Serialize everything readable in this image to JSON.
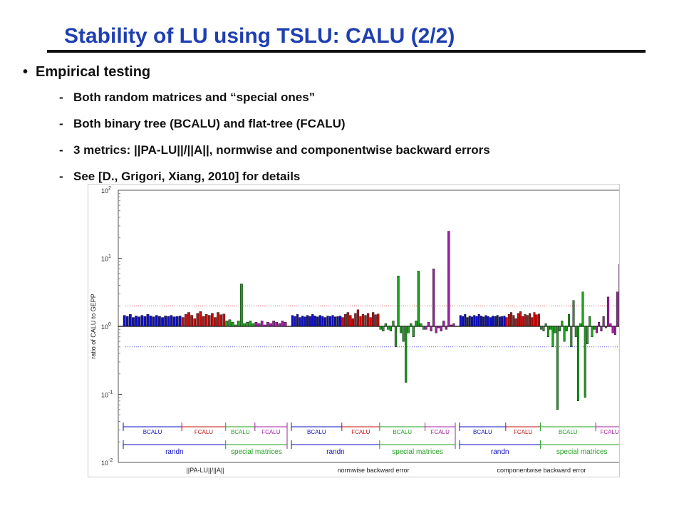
{
  "slide": {
    "title": "Stability of LU using TSLU: CALU  (2/2)",
    "bullet": "Empirical testing",
    "bullet_glyph": "•",
    "dash_glyph": "-",
    "subitems": [
      "Both random matrices and “special ones”",
      "Both binary tree (BCALU) and flat-tree (FCALU)",
      "3 metrics: ||PA-LU||/||A||, normwise and componentwise backward errors",
      "See [D., Grigori, Xiang, 2010] for details"
    ]
  },
  "chart_data": {
    "type": "bar",
    "ylabel": "ratio of CALU to GEPP",
    "yscale": "log",
    "ylim": [
      0.01,
      100
    ],
    "yticks": [
      {
        "base": "10",
        "exp": "2"
      },
      {
        "base": "10",
        "exp": "1"
      },
      {
        "base": "10",
        "exp": "0"
      },
      {
        "base": "10",
        "exp": "-1"
      },
      {
        "base": "10",
        "exp": "-2"
      }
    ],
    "reference_lines": [
      2,
      0.5
    ],
    "colors": {
      "BCALU": "#1010c0",
      "FCALU": "#c01010",
      "special_BCALU": "#20a020",
      "special_FCALU": "#a020a0"
    },
    "metrics": [
      {
        "name": "||PA-LU||/||A||",
        "segment_labels": [
          "BCALU",
          "FCALU",
          "BCALU",
          "FCALU"
        ],
        "group_labels": [
          "randn",
          "special matrices"
        ],
        "series": [
          {
            "name": "BCALU",
            "values": [
              1.45,
              1.4,
              1.5,
              1.35,
              1.42,
              1.38,
              1.45,
              1.4,
              1.5,
              1.42,
              1.38,
              1.45,
              1.4,
              1.35,
              1.42,
              1.4,
              1.45,
              1.38,
              1.4,
              1.42
            ]
          },
          {
            "name": "FCALU",
            "values": [
              1.35,
              1.5,
              1.6,
              1.45,
              1.3,
              1.55,
              1.65,
              1.4,
              1.5,
              1.45,
              1.55,
              1.35,
              1.6,
              1.48,
              1.52
            ]
          },
          {
            "name": "BCALU",
            "values": [
              1.2,
              1.25,
              1.15,
              1.05,
              1.2,
              4.2,
              1.1,
              1.15,
              1.2,
              1.1
            ]
          },
          {
            "name": "FCALU",
            "values": [
              1.15,
              1.1,
              1.2,
              1.05,
              1.15,
              1.1,
              1.2,
              1.15,
              1.1,
              1.2,
              1.15
            ]
          }
        ]
      },
      {
        "name": "normwise backward error",
        "segment_labels": [
          "BCALU",
          "FCALU",
          "BCALU",
          "FCALU"
        ],
        "group_labels": [
          "randn",
          "special matrices"
        ],
        "series": [
          {
            "name": "BCALU",
            "values": [
              1.45,
              1.4,
              1.5,
              1.35,
              1.42,
              1.38,
              1.45,
              1.4,
              1.5,
              1.42,
              1.38,
              1.45,
              1.4,
              1.35,
              1.42,
              1.4,
              1.45,
              1.38,
              1.4,
              1.42
            ]
          },
          {
            "name": "FCALU",
            "values": [
              1.35,
              1.5,
              1.6,
              1.45,
              1.3,
              1.55,
              1.75,
              1.4,
              1.5,
              1.45,
              1.55,
              1.35,
              1.6,
              1.48,
              1.52
            ]
          },
          {
            "name": "BCALU",
            "values": [
              0.9,
              0.85,
              1.1,
              0.9,
              0.85,
              1.2,
              0.5,
              5.5,
              0.8,
              0.6,
              0.15,
              0.8,
              1.1,
              0.7,
              1.2,
              6.5,
              1.1,
              0.9
            ]
          },
          {
            "name": "FCALU",
            "values": [
              0.9,
              1.15,
              0.85,
              7.0,
              0.8,
              0.95,
              0.85,
              1.2,
              0.9,
              25,
              1.05,
              1.1
            ]
          }
        ]
      },
      {
        "name": "componentwise backward error",
        "segment_labels": [
          "BCALU",
          "FCALU",
          "BCALU",
          "FCALU"
        ],
        "group_labels": [
          "randn",
          "special matrices"
        ],
        "series": [
          {
            "name": "BCALU",
            "values": [
              1.45,
              1.4,
              1.5,
              1.35,
              1.42,
              1.38,
              1.45,
              1.4,
              1.5,
              1.42,
              1.38,
              1.45,
              1.4,
              1.35,
              1.42,
              1.4,
              1.45,
              1.38,
              1.4,
              1.42
            ]
          },
          {
            "name": "FCALU",
            "values": [
              1.35,
              1.5,
              1.6,
              1.45,
              1.3,
              1.55,
              1.65,
              1.4,
              1.5,
              1.45,
              1.55,
              1.35,
              1.6,
              1.48,
              1.52
            ]
          },
          {
            "name": "BCALU",
            "values": [
              0.9,
              0.85,
              1.1,
              0.7,
              0.9,
              0.5,
              0.8,
              0.06,
              0.85,
              1.2,
              0.6,
              0.85,
              1.5,
              0.5,
              2.4,
              0.7,
              0.08,
              1.1,
              3.2,
              0.09,
              0.55,
              1.4,
              0.7,
              0.9
            ]
          },
          {
            "name": "FCALU",
            "values": [
              0.8,
              1.15,
              0.85,
              1.4,
              0.95,
              2.7,
              1.1,
              0.8,
              0.75,
              3.2,
              8.2,
              0.8
            ]
          }
        ]
      }
    ]
  }
}
